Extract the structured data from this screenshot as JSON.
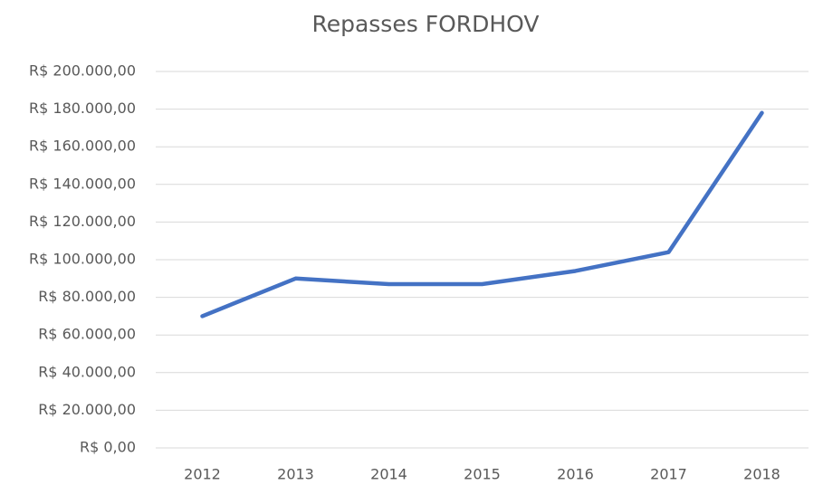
{
  "chart_data": {
    "type": "line",
    "title": "Repasses FORDHOV",
    "categories": [
      "2012",
      "2013",
      "2014",
      "2015",
      "2016",
      "2017",
      "2018"
    ],
    "series": [
      {
        "name": "Repasses",
        "color": "#4472c4",
        "values": [
          70000,
          90000,
          87000,
          87000,
          94000,
          104000,
          178000
        ]
      }
    ],
    "ylim": [
      0,
      200000
    ],
    "yticks": [
      {
        "value": 0,
        "label": "R$ 0,00"
      },
      {
        "value": 20000,
        "label": "R$ 20.000,00"
      },
      {
        "value": 40000,
        "label": "R$ 40.000,00"
      },
      {
        "value": 60000,
        "label": "R$ 60.000,00"
      },
      {
        "value": 80000,
        "label": "R$ 80.000,00"
      },
      {
        "value": 100000,
        "label": "R$ 100.000,00"
      },
      {
        "value": 120000,
        "label": "R$ 120.000,00"
      },
      {
        "value": 140000,
        "label": "R$ 140.000,00"
      },
      {
        "value": 160000,
        "label": "R$ 160.000,00"
      },
      {
        "value": 180000,
        "label": "R$ 180.000,00"
      },
      {
        "value": 200000,
        "label": "R$ 200.000,00"
      }
    ],
    "grid": true
  }
}
